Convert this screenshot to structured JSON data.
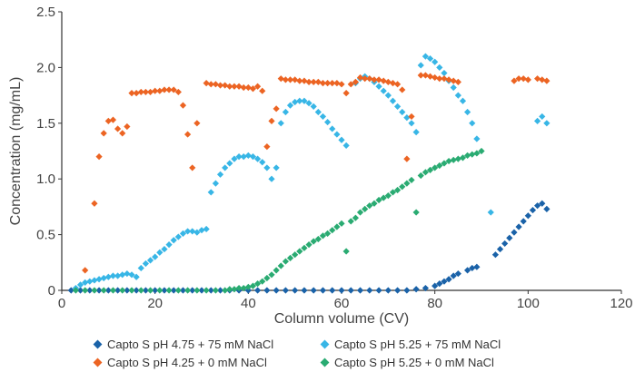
{
  "chart_data": {
    "type": "scatter",
    "xlabel": "Column volume (CV)",
    "ylabel": "Concentration (mg/mL)",
    "xlim": [
      0,
      120
    ],
    "ylim": [
      0,
      2.5
    ],
    "xticks": [
      "0",
      "20",
      "40",
      "60",
      "80",
      "100",
      "120"
    ],
    "yticks": [
      "0",
      "0.5",
      "1.0",
      "1.5",
      "2.0",
      "2.5"
    ],
    "grid": false,
    "legend_position": "bottom",
    "marker": "diamond",
    "series": [
      {
        "name": "Capto S pH 4.75 + 75 mM NaCl",
        "color": "#1a62a8",
        "points": [
          [
            2,
            0
          ],
          [
            4,
            0
          ],
          [
            6,
            0
          ],
          [
            8,
            0
          ],
          [
            10,
            0
          ],
          [
            12,
            0
          ],
          [
            14,
            0
          ],
          [
            16,
            0
          ],
          [
            18,
            0
          ],
          [
            20,
            0
          ],
          [
            22,
            0
          ],
          [
            24,
            0
          ],
          [
            26,
            0
          ],
          [
            28,
            0
          ],
          [
            30,
            0
          ],
          [
            32,
            0
          ],
          [
            34,
            0
          ],
          [
            36,
            0
          ],
          [
            38,
            0
          ],
          [
            40,
            0
          ],
          [
            42,
            0
          ],
          [
            44,
            0
          ],
          [
            46,
            0
          ],
          [
            48,
            0
          ],
          [
            50,
            0
          ],
          [
            52,
            0
          ],
          [
            54,
            0
          ],
          [
            56,
            0
          ],
          [
            58,
            0
          ],
          [
            60,
            0
          ],
          [
            62,
            0
          ],
          [
            64,
            0
          ],
          [
            66,
            0
          ],
          [
            68,
            0
          ],
          [
            70,
            0
          ],
          [
            72,
            0
          ],
          [
            74,
            0
          ],
          [
            76,
            0.01
          ],
          [
            78,
            0.02
          ],
          [
            80,
            0.04
          ],
          [
            81,
            0.06
          ],
          [
            82,
            0.08
          ],
          [
            83,
            0.1
          ],
          [
            84,
            0.13
          ],
          [
            85,
            0.15
          ],
          [
            87,
            0.18
          ],
          [
            88,
            0.2
          ],
          [
            89,
            0.21
          ],
          [
            93,
            0.32
          ],
          [
            94,
            0.37
          ],
          [
            95,
            0.42
          ],
          [
            96,
            0.47
          ],
          [
            97,
            0.52
          ],
          [
            98,
            0.57
          ],
          [
            99,
            0.62
          ],
          [
            100,
            0.67
          ],
          [
            101,
            0.72
          ],
          [
            102,
            0.76
          ],
          [
            103,
            0.78
          ],
          [
            104,
            0.73
          ]
        ]
      },
      {
        "name": "Capto S pH 5.25 + 75 mM NaCl",
        "color": "#38b6e6",
        "points": [
          [
            3,
            0.02
          ],
          [
            4,
            0.05
          ],
          [
            5,
            0.07
          ],
          [
            6,
            0.08
          ],
          [
            7,
            0.09
          ],
          [
            8,
            0.1
          ],
          [
            9,
            0.11
          ],
          [
            10,
            0.12
          ],
          [
            11,
            0.13
          ],
          [
            12,
            0.13
          ],
          [
            13,
            0.14
          ],
          [
            14,
            0.15
          ],
          [
            15,
            0.14
          ],
          [
            16,
            0.12
          ],
          [
            17,
            0.2
          ],
          [
            18,
            0.24
          ],
          [
            19,
            0.27
          ],
          [
            20,
            0.3
          ],
          [
            21,
            0.34
          ],
          [
            22,
            0.37
          ],
          [
            23,
            0.41
          ],
          [
            24,
            0.45
          ],
          [
            25,
            0.48
          ],
          [
            26,
            0.51
          ],
          [
            27,
            0.53
          ],
          [
            28,
            0.53
          ],
          [
            29,
            0.52
          ],
          [
            30,
            0.54
          ],
          [
            31,
            0.55
          ],
          [
            32,
            0.88
          ],
          [
            33,
            0.96
          ],
          [
            34,
            1.04
          ],
          [
            35,
            1.1
          ],
          [
            36,
            1.14
          ],
          [
            37,
            1.18
          ],
          [
            38,
            1.2
          ],
          [
            39,
            1.2
          ],
          [
            40,
            1.21
          ],
          [
            41,
            1.2
          ],
          [
            42,
            1.18
          ],
          [
            43,
            1.15
          ],
          [
            44,
            1.1
          ],
          [
            45,
            1.0
          ],
          [
            46,
            1.1
          ],
          [
            47,
            1.5
          ],
          [
            48,
            1.6
          ],
          [
            49,
            1.66
          ],
          [
            50,
            1.69
          ],
          [
            51,
            1.7
          ],
          [
            52,
            1.7
          ],
          [
            53,
            1.68
          ],
          [
            54,
            1.65
          ],
          [
            55,
            1.6
          ],
          [
            56,
            1.56
          ],
          [
            57,
            1.51
          ],
          [
            58,
            1.45
          ],
          [
            59,
            1.4
          ],
          [
            60,
            1.35
          ],
          [
            61,
            1.3
          ],
          [
            63,
            1.86
          ],
          [
            64,
            1.9
          ],
          [
            65,
            1.92
          ],
          [
            66,
            1.9
          ],
          [
            67,
            1.87
          ],
          [
            68,
            1.83
          ],
          [
            69,
            1.79
          ],
          [
            70,
            1.75
          ],
          [
            71,
            1.7
          ],
          [
            72,
            1.65
          ],
          [
            73,
            1.6
          ],
          [
            74,
            1.55
          ],
          [
            75,
            1.5
          ],
          [
            76,
            1.42
          ],
          [
            77,
            2.02
          ],
          [
            78,
            2.1
          ],
          [
            79,
            2.08
          ],
          [
            80,
            2.05
          ],
          [
            81,
            2.0
          ],
          [
            82,
            1.95
          ],
          [
            83,
            1.88
          ],
          [
            84,
            1.82
          ],
          [
            85,
            1.75
          ],
          [
            86,
            1.7
          ],
          [
            87,
            1.6
          ],
          [
            88,
            1.5
          ],
          [
            89,
            1.36
          ],
          [
            92,
            0.7
          ],
          [
            102,
            1.52
          ],
          [
            103,
            1.56
          ],
          [
            104,
            1.5
          ]
        ]
      },
      {
        "name": "Capto S pH 4.25 + 0 mM NaCl",
        "color": "#ec6423",
        "points": [
          [
            5,
            0.18
          ],
          [
            7,
            0.78
          ],
          [
            8,
            1.2
          ],
          [
            9,
            1.41
          ],
          [
            10,
            1.52
          ],
          [
            11,
            1.53
          ],
          [
            12,
            1.45
          ],
          [
            13,
            1.41
          ],
          [
            14,
            1.47
          ],
          [
            15,
            1.77
          ],
          [
            16,
            1.77
          ],
          [
            17,
            1.78
          ],
          [
            18,
            1.78
          ],
          [
            19,
            1.78
          ],
          [
            20,
            1.79
          ],
          [
            21,
            1.79
          ],
          [
            22,
            1.8
          ],
          [
            23,
            1.8
          ],
          [
            24,
            1.8
          ],
          [
            25,
            1.78
          ],
          [
            26,
            1.66
          ],
          [
            27,
            1.4
          ],
          [
            28,
            1.1
          ],
          [
            29,
            1.5
          ],
          [
            31,
            1.86
          ],
          [
            32,
            1.85
          ],
          [
            33,
            1.85
          ],
          [
            34,
            1.84
          ],
          [
            35,
            1.84
          ],
          [
            36,
            1.83
          ],
          [
            37,
            1.83
          ],
          [
            38,
            1.83
          ],
          [
            39,
            1.82
          ],
          [
            40,
            1.82
          ],
          [
            41,
            1.81
          ],
          [
            42,
            1.83
          ],
          [
            43,
            1.79
          ],
          [
            44,
            1.29
          ],
          [
            45,
            1.52
          ],
          [
            46,
            1.63
          ],
          [
            47,
            1.9
          ],
          [
            48,
            1.89
          ],
          [
            49,
            1.89
          ],
          [
            50,
            1.89
          ],
          [
            51,
            1.88
          ],
          [
            52,
            1.88
          ],
          [
            53,
            1.87
          ],
          [
            54,
            1.87
          ],
          [
            55,
            1.87
          ],
          [
            56,
            1.86
          ],
          [
            57,
            1.86
          ],
          [
            58,
            1.86
          ],
          [
            59,
            1.86
          ],
          [
            60,
            1.85
          ],
          [
            61,
            1.77
          ],
          [
            62,
            1.85
          ],
          [
            63,
            1.87
          ],
          [
            64,
            1.91
          ],
          [
            65,
            1.9
          ],
          [
            66,
            1.9
          ],
          [
            67,
            1.89
          ],
          [
            68,
            1.89
          ],
          [
            69,
            1.88
          ],
          [
            70,
            1.87
          ],
          [
            71,
            1.86
          ],
          [
            72,
            1.85
          ],
          [
            73,
            1.8
          ],
          [
            74,
            1.18
          ],
          [
            75,
            1.56
          ],
          [
            77,
            1.93
          ],
          [
            78,
            1.93
          ],
          [
            79,
            1.92
          ],
          [
            80,
            1.91
          ],
          [
            81,
            1.9
          ],
          [
            82,
            1.9
          ],
          [
            83,
            1.89
          ],
          [
            84,
            1.88
          ],
          [
            85,
            1.87
          ],
          [
            97,
            1.88
          ],
          [
            98,
            1.9
          ],
          [
            99,
            1.9
          ],
          [
            100,
            1.89
          ],
          [
            102,
            1.9
          ],
          [
            103,
            1.89
          ],
          [
            104,
            1.88
          ]
        ]
      },
      {
        "name": "Capto S pH 5.25 + 0 mM NaCl",
        "color": "#2aab72",
        "points": [
          [
            3,
            0
          ],
          [
            5,
            0
          ],
          [
            7,
            0
          ],
          [
            9,
            0
          ],
          [
            11,
            0
          ],
          [
            13,
            0
          ],
          [
            15,
            0
          ],
          [
            17,
            0
          ],
          [
            19,
            0
          ],
          [
            21,
            0
          ],
          [
            23,
            0
          ],
          [
            25,
            0
          ],
          [
            27,
            0
          ],
          [
            29,
            0
          ],
          [
            31,
            0
          ],
          [
            33,
            0
          ],
          [
            35,
            0
          ],
          [
            36,
            0.01
          ],
          [
            37,
            0.01
          ],
          [
            38,
            0.02
          ],
          [
            39,
            0.02
          ],
          [
            40,
            0.03
          ],
          [
            41,
            0.04
          ],
          [
            42,
            0.06
          ],
          [
            43,
            0.08
          ],
          [
            44,
            0.11
          ],
          [
            45,
            0.14
          ],
          [
            46,
            0.18
          ],
          [
            47,
            0.22
          ],
          [
            48,
            0.26
          ],
          [
            49,
            0.29
          ],
          [
            50,
            0.32
          ],
          [
            51,
            0.35
          ],
          [
            52,
            0.38
          ],
          [
            53,
            0.41
          ],
          [
            54,
            0.44
          ],
          [
            55,
            0.46
          ],
          [
            56,
            0.49
          ],
          [
            57,
            0.51
          ],
          [
            58,
            0.54
          ],
          [
            59,
            0.57
          ],
          [
            60,
            0.6
          ],
          [
            61,
            0.35
          ],
          [
            62,
            0.62
          ],
          [
            63,
            0.65
          ],
          [
            64,
            0.7
          ],
          [
            65,
            0.73
          ],
          [
            66,
            0.76
          ],
          [
            67,
            0.78
          ],
          [
            68,
            0.81
          ],
          [
            69,
            0.83
          ],
          [
            70,
            0.85
          ],
          [
            71,
            0.88
          ],
          [
            72,
            0.9
          ],
          [
            73,
            0.93
          ],
          [
            74,
            0.96
          ],
          [
            75,
            0.99
          ],
          [
            76,
            0.7
          ],
          [
            77,
            1.03
          ],
          [
            78,
            1.06
          ],
          [
            79,
            1.08
          ],
          [
            80,
            1.1
          ],
          [
            81,
            1.12
          ],
          [
            82,
            1.14
          ],
          [
            83,
            1.16
          ],
          [
            84,
            1.17
          ],
          [
            85,
            1.18
          ],
          [
            86,
            1.19
          ],
          [
            87,
            1.21
          ],
          [
            88,
            1.22
          ],
          [
            89,
            1.23
          ],
          [
            90,
            1.25
          ]
        ]
      }
    ]
  }
}
